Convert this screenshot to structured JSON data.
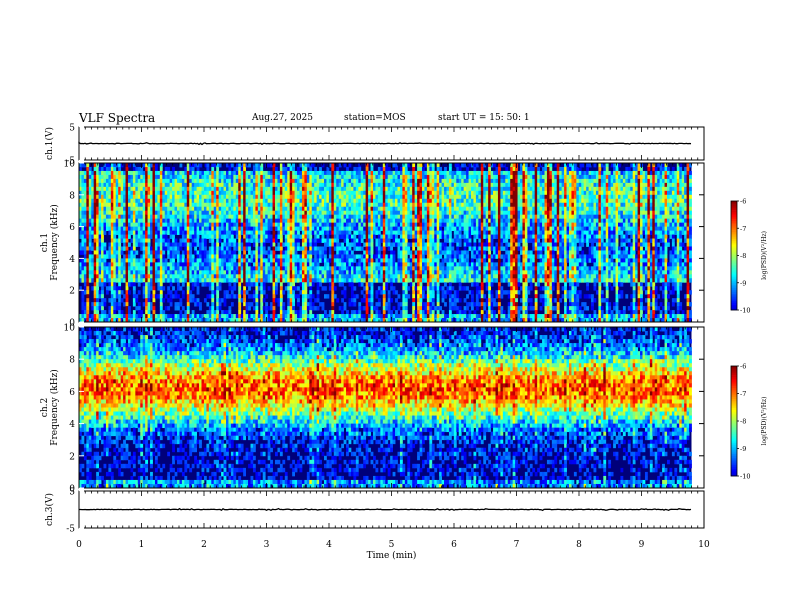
{
  "header": {
    "title": "VLF Spectra",
    "date": "Aug.27, 2025",
    "station": "station=MOS",
    "start_ut": "start  UT  =   15: 50: 1"
  },
  "chart_data": [
    {
      "type": "line",
      "name": "ch1-waveform",
      "ylabel": "ch.1(V)",
      "ylim": [
        -5,
        5
      ],
      "y_ticks": [
        "5",
        "-5"
      ],
      "baseline": 0,
      "xlim": [
        0,
        10
      ]
    },
    {
      "type": "heatmap",
      "name": "ch1-spectrogram",
      "ylabel": "ch.1\nFrequency (kHz)",
      "ylabel_line1": "ch.1",
      "ylabel_line2": "Frequency (kHz)",
      "ylim": [
        0,
        10
      ],
      "y_ticks": [
        "0",
        "2",
        "4",
        "6",
        "8",
        "10"
      ],
      "xlim": [
        0,
        9.8
      ],
      "intensity_profile": "sferic-dominated: vertical broadband bursts, weaker 3-9 kHz band",
      "colorbar": {
        "label": "log(PSD)(V²/Hz)",
        "range": [
          -10,
          -6
        ],
        "ticks": [
          "-6",
          "-7",
          "-8",
          "-9",
          "-10"
        ]
      }
    },
    {
      "type": "heatmap",
      "name": "ch2-spectrogram",
      "ylabel": "ch.2\nFrequency (kHz)",
      "ylabel_line1": "ch.2",
      "ylabel_line2": "Frequency (kHz)",
      "ylim": [
        0,
        10
      ],
      "y_ticks": [
        "0",
        "2",
        "4",
        "6",
        "8",
        "10"
      ],
      "xlim": [
        0,
        9.8
      ],
      "intensity_profile": "strong continuous band centered near 6 kHz with vertical sferic streaks",
      "colorbar": {
        "label": "log(PSD)(V²/Hz)",
        "range": [
          -10,
          -6
        ],
        "ticks": [
          "-6",
          "-7",
          "-8",
          "-9",
          "-10"
        ]
      }
    },
    {
      "type": "line",
      "name": "ch3-waveform",
      "ylabel": "ch.3(V)",
      "ylim": [
        -5,
        5
      ],
      "y_ticks": [
        "5",
        "-5"
      ],
      "baseline": 0,
      "xlim": [
        0,
        10
      ]
    }
  ],
  "x_axis": {
    "label": "Time  (min)",
    "ticks": [
      "0",
      "1",
      "2",
      "3",
      "4",
      "5",
      "6",
      "7",
      "8",
      "9",
      "10"
    ],
    "range": [
      0,
      10
    ]
  },
  "colors": {
    "frame": "#000000",
    "spectrogram_bg": "#00007a",
    "trace": "#000000"
  }
}
